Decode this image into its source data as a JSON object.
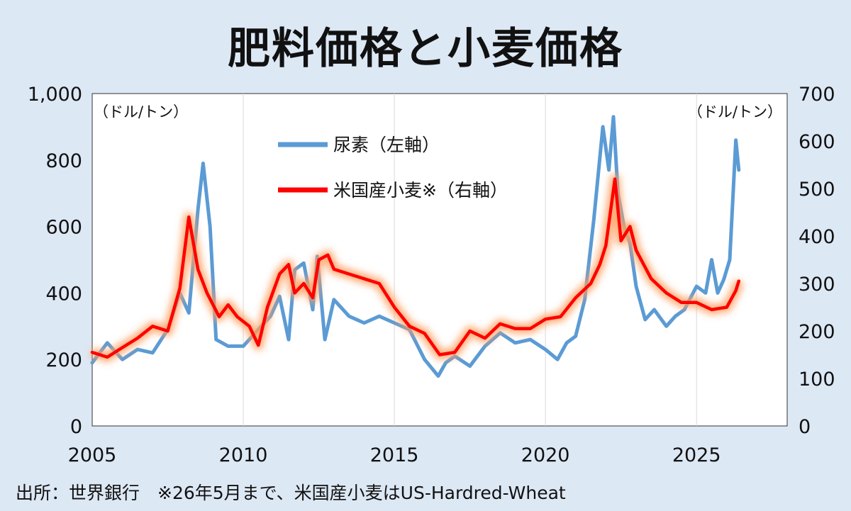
{
  "chart_data": {
    "type": "line",
    "title": "肥料価格と小麦価格",
    "left_unit": "（ドル/トン）",
    "right_unit": "（ドル/トン）",
    "x_ticks": [
      "2005",
      "2010",
      "2015",
      "2020",
      "2025"
    ],
    "xlim": [
      2005,
      2028
    ],
    "y_left_ticks": [
      "0",
      "200",
      "400",
      "600",
      "800",
      "1,000"
    ],
    "y_left_lim": [
      0,
      1000
    ],
    "y_right_ticks": [
      "0",
      "100",
      "200",
      "300",
      "400",
      "500",
      "600",
      "700"
    ],
    "y_right_lim": [
      0,
      700
    ],
    "grid_vertical": true,
    "legend_position": "top-center",
    "series": [
      {
        "name": "尿素（左軸）",
        "axis": "left",
        "color": "#5b9bd5",
        "x": [
          2005.0,
          2005.5,
          2006.0,
          2006.5,
          2007.0,
          2007.5,
          2007.9,
          2008.2,
          2008.5,
          2008.67,
          2008.9,
          2009.1,
          2009.5,
          2010.0,
          2010.5,
          2010.9,
          2011.2,
          2011.5,
          2011.7,
          2012.0,
          2012.3,
          2012.45,
          2012.7,
          2013.0,
          2013.5,
          2014.0,
          2014.5,
          2015.0,
          2015.5,
          2016.0,
          2016.45,
          2016.7,
          2017.0,
          2017.5,
          2018.0,
          2018.5,
          2019.0,
          2019.5,
          2020.0,
          2020.4,
          2020.7,
          2021.0,
          2021.3,
          2021.6,
          2021.9,
          2022.1,
          2022.25,
          2022.4,
          2022.6,
          2022.8,
          2023.0,
          2023.3,
          2023.6,
          2024.0,
          2024.3,
          2024.6,
          2025.0,
          2025.3,
          2025.5,
          2025.7,
          2025.9,
          2026.1,
          2026.3,
          2026.4
        ],
        "values": [
          190,
          250,
          200,
          230,
          220,
          290,
          400,
          340,
          650,
          790,
          600,
          260,
          240,
          240,
          290,
          330,
          390,
          260,
          470,
          490,
          350,
          510,
          260,
          380,
          330,
          310,
          330,
          310,
          290,
          200,
          150,
          190,
          210,
          180,
          240,
          280,
          250,
          260,
          230,
          200,
          250,
          270,
          380,
          620,
          900,
          770,
          930,
          700,
          600,
          550,
          420,
          320,
          350,
          300,
          330,
          350,
          420,
          400,
          500,
          400,
          440,
          500,
          860,
          770
        ]
      },
      {
        "name": "米国産小麦※（右軸）",
        "axis": "right",
        "color": "#ff0000",
        "x": [
          2005.0,
          2005.5,
          2006.0,
          2006.5,
          2007.0,
          2007.5,
          2007.9,
          2008.2,
          2008.5,
          2008.8,
          2009.2,
          2009.5,
          2009.8,
          2010.2,
          2010.5,
          2010.8,
          2011.2,
          2011.5,
          2011.7,
          2012.0,
          2012.3,
          2012.5,
          2012.8,
          2013.0,
          2013.5,
          2014.0,
          2014.5,
          2015.0,
          2015.5,
          2016.0,
          2016.5,
          2017.0,
          2017.5,
          2018.0,
          2018.5,
          2019.0,
          2019.5,
          2020.0,
          2020.5,
          2021.0,
          2021.5,
          2021.8,
          2022.0,
          2022.3,
          2022.5,
          2022.8,
          2023.0,
          2023.5,
          2024.0,
          2024.5,
          2025.0,
          2025.5,
          2026.0,
          2026.3,
          2026.4
        ],
        "values": [
          155,
          145,
          165,
          185,
          210,
          200,
          290,
          440,
          330,
          280,
          230,
          255,
          230,
          210,
          170,
          250,
          320,
          340,
          280,
          300,
          270,
          350,
          360,
          330,
          320,
          310,
          300,
          250,
          210,
          195,
          150,
          155,
          200,
          185,
          215,
          205,
          205,
          225,
          230,
          270,
          300,
          340,
          380,
          520,
          390,
          420,
          370,
          310,
          280,
          260,
          260,
          245,
          250,
          285,
          305
        ]
      }
    ]
  },
  "source_note": "出所：世界銀行　※26年5月まで、米国産小麦はUS-Hardred-Wheat"
}
